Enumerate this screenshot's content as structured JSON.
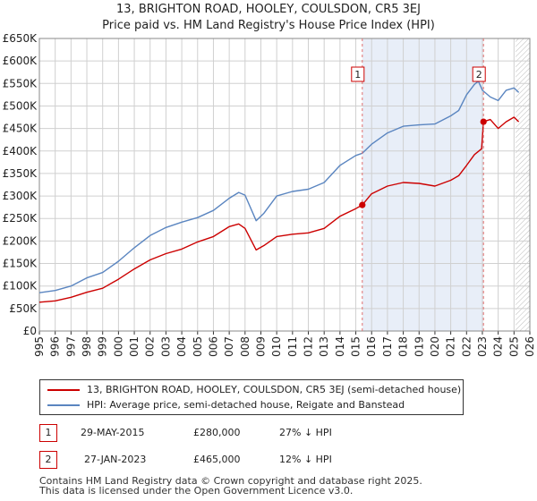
{
  "header": {
    "title": "13, BRIGHTON ROAD, HOOLEY, COULSDON, CR5 3EJ",
    "subtitle": "Price paid vs. HM Land Registry's House Price Index (HPI)"
  },
  "colors": {
    "property": "#cc0000",
    "hpi": "#5a85c0",
    "shade": "#e8eef8",
    "marker_line": "#e07070",
    "grid": "#d0d0d0"
  },
  "chart_data": {
    "type": "line",
    "title": "Price paid vs. HM Land Registry's House Price Index (HPI)",
    "x_ticks": [
      "1995",
      "1996",
      "1997",
      "1998",
      "1999",
      "2000",
      "2001",
      "2002",
      "2003",
      "2004",
      "2005",
      "2006",
      "2007",
      "2008",
      "2009",
      "2010",
      "2011",
      "2012",
      "2013",
      "2014",
      "2015",
      "2016",
      "2017",
      "2018",
      "2019",
      "2020",
      "2021",
      "2022",
      "2023",
      "2024",
      "2025",
      "2026"
    ],
    "y_ticks": [
      0,
      50000,
      100000,
      150000,
      200000,
      250000,
      300000,
      350000,
      400000,
      450000,
      500000,
      550000,
      600000,
      650000
    ],
    "y_tick_labels": [
      "£0",
      "£50K",
      "£100K",
      "£150K",
      "£200K",
      "£250K",
      "£300K",
      "£350K",
      "£400K",
      "£450K",
      "£500K",
      "£550K",
      "£600K",
      "£650K"
    ],
    "xlim": [
      1995,
      2026
    ],
    "ylim": [
      0,
      650000
    ],
    "grid": true,
    "shaded_region": [
      2015.41,
      2023.07
    ],
    "hatched_region": [
      2025.1,
      2026
    ],
    "series": [
      {
        "name": "13, BRIGHTON ROAD, HOOLEY, COULSDON, CR5 3EJ (semi-detached house)",
        "color": "#cc0000",
        "x": [
          1995,
          1996,
          1997,
          1998,
          1999,
          2000,
          2001,
          2002,
          2003,
          2004,
          2005,
          2006,
          2007,
          2007.6,
          2008,
          2008.7,
          2009.2,
          2010,
          2011,
          2012,
          2013,
          2014,
          2015,
          2015.41,
          2016,
          2017,
          2018,
          2019,
          2020,
          2021,
          2021.5,
          2022,
          2022.5,
          2022.95,
          2023.07,
          2023.5,
          2024,
          2024.5,
          2025,
          2025.3
        ],
        "y": [
          64000,
          67000,
          75000,
          86000,
          95000,
          115000,
          138000,
          158000,
          172000,
          182000,
          198000,
          210000,
          232000,
          238000,
          228000,
          180000,
          190000,
          210000,
          215000,
          218000,
          228000,
          255000,
          272000,
          280000,
          305000,
          322000,
          330000,
          328000,
          322000,
          335000,
          345000,
          368000,
          392000,
          405000,
          465000,
          470000,
          450000,
          465000,
          475000,
          465000
        ]
      },
      {
        "name": "HPI: Average price, semi-detached house, Reigate and Banstead",
        "color": "#5a85c0",
        "x": [
          1995,
          1996,
          1997,
          1998,
          1999,
          2000,
          2001,
          2002,
          2003,
          2004,
          2005,
          2006,
          2007,
          2007.6,
          2008,
          2008.7,
          2009.2,
          2010,
          2011,
          2012,
          2013,
          2014,
          2015,
          2015.41,
          2016,
          2017,
          2018,
          2019,
          2020,
          2021,
          2021.5,
          2022,
          2022.5,
          2022.75,
          2023,
          2023.5,
          2024,
          2024.5,
          2025,
          2025.3
        ],
        "y": [
          85000,
          90000,
          100000,
          118000,
          130000,
          155000,
          185000,
          212000,
          230000,
          242000,
          252000,
          268000,
          295000,
          308000,
          302000,
          245000,
          262000,
          300000,
          310000,
          315000,
          330000,
          368000,
          390000,
          395000,
          415000,
          440000,
          455000,
          458000,
          460000,
          478000,
          490000,
          525000,
          548000,
          555000,
          535000,
          520000,
          512000,
          535000,
          540000,
          530000
        ]
      }
    ],
    "annotations": [
      {
        "label": "1",
        "x": 2015.41,
        "y": 280000
      },
      {
        "label": "2",
        "x": 2023.07,
        "y": 465000
      }
    ]
  },
  "legend": {
    "property_label": "13, BRIGHTON ROAD, HOOLEY, COULSDON, CR5 3EJ (semi-detached house)",
    "hpi_label": "HPI: Average price, semi-detached house, Reigate and Banstead"
  },
  "transactions": [
    {
      "num": "1",
      "date": "29-MAY-2015",
      "price": "£280,000",
      "hpi": "27% ↓ HPI"
    },
    {
      "num": "2",
      "date": "27-JAN-2023",
      "price": "£465,000",
      "hpi": "12% ↓ HPI"
    }
  ],
  "footer": {
    "line1": "Contains HM Land Registry data © Crown copyright and database right 2025.",
    "line2": "This data is licensed under the Open Government Licence v3.0."
  }
}
